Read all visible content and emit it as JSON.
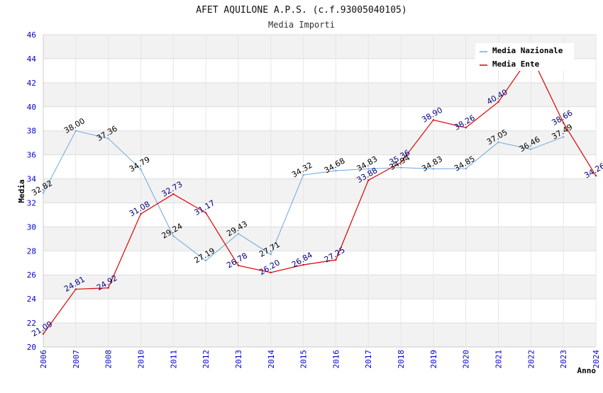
{
  "chart_data": {
    "type": "line",
    "title": "AFET AQUILONE A.P.S. (c.f.93005040105)",
    "subtitle": "Media Importi",
    "xlabel": "Anno",
    "ylabel": "Media",
    "ylim": [
      20,
      46
    ],
    "y_ticks": [
      "20",
      "22",
      "24",
      "26",
      "28",
      "30",
      "32",
      "34",
      "36",
      "38",
      "40",
      "42",
      "44",
      "46"
    ],
    "categories": [
      "2006",
      "2007",
      "2008",
      "2010",
      "2011",
      "2012",
      "2013",
      "2014",
      "2015",
      "2016",
      "2017",
      "2018",
      "2019",
      "2020",
      "2021",
      "2022",
      "2023",
      "2024"
    ],
    "grid": true,
    "legend_position": "top-right",
    "series": [
      {
        "name": "Media Nazionale",
        "color": "#6fa8dc",
        "values": [
          32.82,
          38.0,
          37.36,
          34.79,
          29.24,
          27.19,
          29.43,
          27.71,
          34.32,
          34.68,
          34.83,
          34.94,
          34.83,
          34.85,
          37.05,
          36.46,
          37.49,
          null
        ],
        "labels": [
          "32.82",
          "38.00",
          "37.36",
          "34.79",
          "29.24",
          "27.19",
          "29.43",
          "27.71",
          "34.32",
          "34.68",
          "34.83",
          "34.94",
          "34.83",
          "34.85",
          "37.05",
          "36.46",
          "37.49",
          ""
        ]
      },
      {
        "name": "Media Ente",
        "color": "#e00000",
        "values": [
          21.09,
          24.81,
          24.92,
          31.08,
          32.73,
          31.17,
          26.78,
          26.2,
          26.84,
          27.25,
          33.88,
          35.36,
          38.9,
          38.26,
          40.4,
          44.3,
          38.66,
          34.26
        ],
        "labels": [
          "21.09",
          "24.81",
          "24.92",
          "31.08",
          "32.73",
          "31.17",
          "26.78",
          "26.20",
          "26.84",
          "27.25",
          "33.88",
          "35.36",
          "38.90",
          "38.26",
          "40.40",
          "",
          "38.66",
          "34.26"
        ]
      }
    ]
  }
}
